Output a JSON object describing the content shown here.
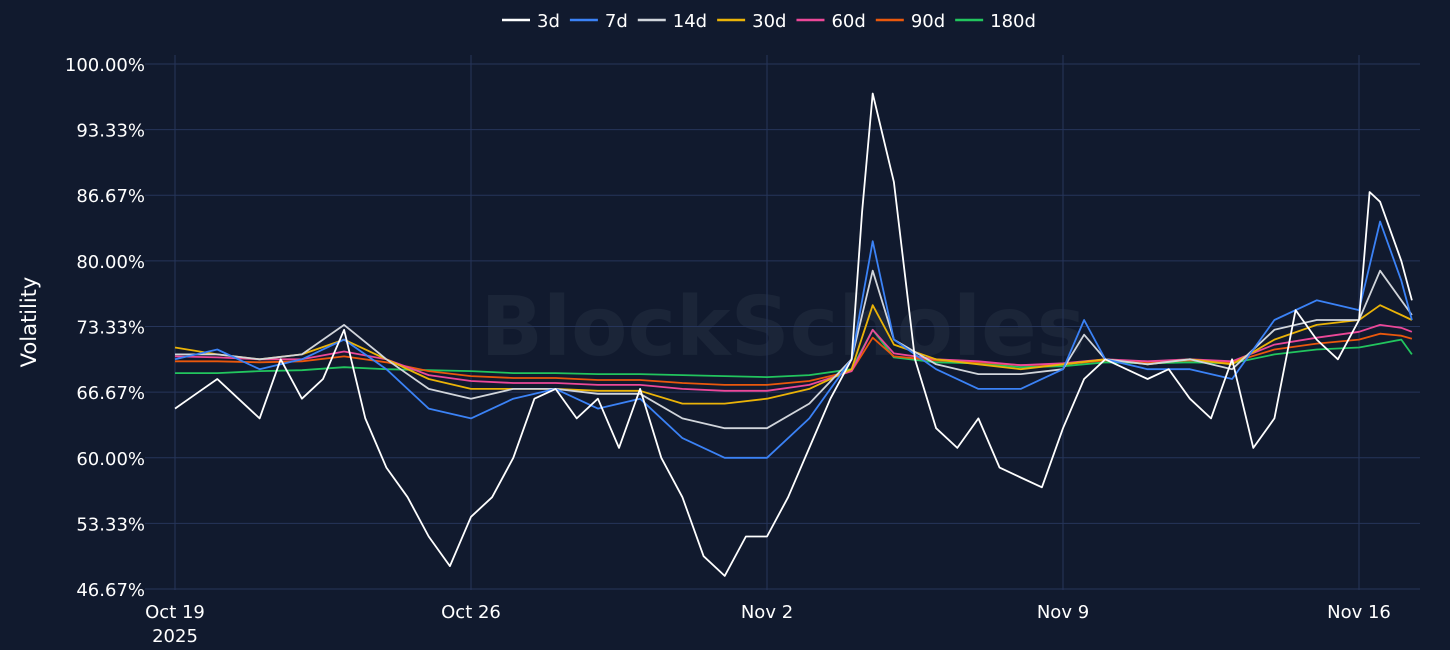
{
  "watermark": "BlockScholes",
  "chart_data": {
    "type": "line",
    "ylabel": "Volatility",
    "ylim": [
      0.4667,
      1.0
    ],
    "yticks": [
      {
        "value": 1.0,
        "label": "100.00%"
      },
      {
        "value": 0.9333,
        "label": "93.33%"
      },
      {
        "value": 0.8667,
        "label": "86.67%"
      },
      {
        "value": 0.8,
        "label": "80.00%"
      },
      {
        "value": 0.7333,
        "label": "73.33%"
      },
      {
        "value": 0.6667,
        "label": "66.67%"
      },
      {
        "value": 0.6,
        "label": "60.00%"
      },
      {
        "value": 0.5333,
        "label": "53.33%"
      },
      {
        "value": 0.4667,
        "label": "46.67%"
      }
    ],
    "xlim": [
      "2025-10-19",
      "2025-11-17 06:00"
    ],
    "xticks": [
      {
        "value": "2025-10-19",
        "label": "Oct 19",
        "sublabel": "2025"
      },
      {
        "value": "2025-10-26",
        "label": "Oct 26",
        "sublabel": ""
      },
      {
        "value": "2025-11-02",
        "label": "Nov 2",
        "sublabel": ""
      },
      {
        "value": "2025-11-09",
        "label": "Nov 9",
        "sublabel": ""
      },
      {
        "value": "2025-11-16",
        "label": "Nov 16",
        "sublabel": ""
      }
    ],
    "legend_position": "top-center",
    "series": [
      {
        "name": "3d",
        "color": "#ffffff",
        "x": [
          "2025-10-19",
          "2025-10-19 12:00",
          "2025-10-20",
          "2025-10-20 12:00",
          "2025-10-21",
          "2025-10-21 12:00",
          "2025-10-22",
          "2025-10-22 12:00",
          "2025-10-23",
          "2025-10-23 12:00",
          "2025-10-24",
          "2025-10-24 12:00",
          "2025-10-25",
          "2025-10-25 12:00",
          "2025-10-26",
          "2025-10-26 12:00",
          "2025-10-27",
          "2025-10-27 12:00",
          "2025-10-28",
          "2025-10-28 12:00",
          "2025-10-29",
          "2025-10-29 12:00",
          "2025-10-30",
          "2025-10-30 12:00",
          "2025-10-31",
          "2025-10-31 12:00",
          "2025-11-01",
          "2025-11-01 12:00",
          "2025-11-02",
          "2025-11-02 12:00",
          "2025-11-03",
          "2025-11-03 12:00",
          "2025-11-04",
          "2025-11-04 06:00",
          "2025-11-04 12:00",
          "2025-11-05",
          "2025-11-05 12:00",
          "2025-11-06",
          "2025-11-06 12:00",
          "2025-11-07",
          "2025-11-07 12:00",
          "2025-11-08",
          "2025-11-08 12:00",
          "2025-11-09",
          "2025-11-09 12:00",
          "2025-11-10",
          "2025-11-10 12:00",
          "2025-11-11",
          "2025-11-11 12:00",
          "2025-11-12",
          "2025-11-12 12:00",
          "2025-11-13",
          "2025-11-13 12:00",
          "2025-11-14",
          "2025-11-14 12:00",
          "2025-11-15",
          "2025-11-15 12:00",
          "2025-11-16",
          "2025-11-16 06:00",
          "2025-11-16 12:00",
          "2025-11-17",
          "2025-11-17 06:00"
        ],
        "values": [
          0.65,
          0.665,
          0.68,
          0.66,
          0.64,
          0.7,
          0.66,
          0.68,
          0.73,
          0.64,
          0.59,
          0.56,
          0.52,
          0.49,
          0.54,
          0.56,
          0.6,
          0.66,
          0.67,
          0.64,
          0.66,
          0.61,
          0.67,
          0.6,
          0.56,
          0.5,
          0.48,
          0.52,
          0.52,
          0.56,
          0.61,
          0.66,
          0.7,
          0.85,
          0.97,
          0.88,
          0.7,
          0.63,
          0.61,
          0.64,
          0.59,
          0.58,
          0.57,
          0.63,
          0.68,
          0.7,
          0.69,
          0.68,
          0.69,
          0.66,
          0.64,
          0.7,
          0.61,
          0.64,
          0.75,
          0.72,
          0.7,
          0.74,
          0.87,
          0.86,
          0.8,
          0.76
        ]
      },
      {
        "name": "7d",
        "color": "#3b82f6",
        "x": [
          "2025-10-19",
          "2025-10-20",
          "2025-10-21",
          "2025-10-22",
          "2025-10-23",
          "2025-10-24",
          "2025-10-25",
          "2025-10-26",
          "2025-10-27",
          "2025-10-28",
          "2025-10-29",
          "2025-10-30",
          "2025-10-31",
          "2025-11-01",
          "2025-11-02",
          "2025-11-03",
          "2025-11-04",
          "2025-11-04 12:00",
          "2025-11-05",
          "2025-11-06",
          "2025-11-07",
          "2025-11-08",
          "2025-11-09",
          "2025-11-09 12:00",
          "2025-11-10",
          "2025-11-11",
          "2025-11-12",
          "2025-11-13",
          "2025-11-14",
          "2025-11-15",
          "2025-11-16",
          "2025-11-16 12:00",
          "2025-11-17",
          "2025-11-17 06:00"
        ],
        "values": [
          0.7,
          0.71,
          0.69,
          0.7,
          0.72,
          0.69,
          0.65,
          0.64,
          0.66,
          0.67,
          0.65,
          0.66,
          0.62,
          0.6,
          0.6,
          0.64,
          0.7,
          0.82,
          0.72,
          0.69,
          0.67,
          0.67,
          0.69,
          0.74,
          0.7,
          0.69,
          0.69,
          0.68,
          0.74,
          0.76,
          0.75,
          0.84,
          0.78,
          0.74
        ]
      },
      {
        "name": "14d",
        "color": "#d1d5db",
        "x": [
          "2025-10-19",
          "2025-10-20",
          "2025-10-21",
          "2025-10-22",
          "2025-10-23",
          "2025-10-24",
          "2025-10-25",
          "2025-10-26",
          "2025-10-27",
          "2025-10-28",
          "2025-10-29",
          "2025-10-30",
          "2025-10-31",
          "2025-11-01",
          "2025-11-02",
          "2025-11-03",
          "2025-11-04",
          "2025-11-04 12:00",
          "2025-11-05",
          "2025-11-06",
          "2025-11-07",
          "2025-11-08",
          "2025-11-09",
          "2025-11-09 12:00",
          "2025-11-10",
          "2025-11-11",
          "2025-11-12",
          "2025-11-13",
          "2025-11-14",
          "2025-11-15",
          "2025-11-16",
          "2025-11-16 12:00",
          "2025-11-17",
          "2025-11-17 06:00"
        ],
        "values": [
          0.705,
          0.705,
          0.7,
          0.705,
          0.735,
          0.7,
          0.67,
          0.66,
          0.67,
          0.67,
          0.665,
          0.665,
          0.64,
          0.63,
          0.63,
          0.655,
          0.7,
          0.79,
          0.72,
          0.695,
          0.685,
          0.685,
          0.69,
          0.725,
          0.7,
          0.695,
          0.7,
          0.69,
          0.73,
          0.74,
          0.74,
          0.79,
          0.76,
          0.745
        ]
      },
      {
        "name": "30d",
        "color": "#eab308",
        "x": [
          "2025-10-19",
          "2025-10-20",
          "2025-10-21",
          "2025-10-22",
          "2025-10-23",
          "2025-10-24",
          "2025-10-25",
          "2025-10-26",
          "2025-10-27",
          "2025-10-28",
          "2025-10-29",
          "2025-10-30",
          "2025-10-31",
          "2025-11-01",
          "2025-11-02",
          "2025-11-03",
          "2025-11-04",
          "2025-11-04 12:00",
          "2025-11-05",
          "2025-11-06",
          "2025-11-07",
          "2025-11-08",
          "2025-11-09",
          "2025-11-10",
          "2025-11-11",
          "2025-11-12",
          "2025-11-13",
          "2025-11-14",
          "2025-11-15",
          "2025-11-16",
          "2025-11-16 12:00",
          "2025-11-17",
          "2025-11-17 06:00"
        ],
        "values": [
          0.712,
          0.705,
          0.7,
          0.705,
          0.72,
          0.7,
          0.68,
          0.67,
          0.67,
          0.67,
          0.668,
          0.668,
          0.655,
          0.655,
          0.66,
          0.67,
          0.69,
          0.755,
          0.715,
          0.7,
          0.695,
          0.69,
          0.695,
          0.7,
          0.695,
          0.7,
          0.695,
          0.72,
          0.735,
          0.74,
          0.755,
          0.745,
          0.74
        ]
      },
      {
        "name": "60d",
        "color": "#ec4899",
        "x": [
          "2025-10-19",
          "2025-10-20",
          "2025-10-21",
          "2025-10-22",
          "2025-10-23",
          "2025-10-24",
          "2025-10-25",
          "2025-10-26",
          "2025-10-27",
          "2025-10-28",
          "2025-10-29",
          "2025-10-30",
          "2025-10-31",
          "2025-11-01",
          "2025-11-02",
          "2025-11-03",
          "2025-11-04",
          "2025-11-04 12:00",
          "2025-11-05",
          "2025-11-06",
          "2025-11-07",
          "2025-11-08",
          "2025-11-09",
          "2025-11-10",
          "2025-11-11",
          "2025-11-12",
          "2025-11-13",
          "2025-11-14",
          "2025-11-15",
          "2025-11-16",
          "2025-11-16 12:00",
          "2025-11-17",
          "2025-11-17 06:00"
        ],
        "values": [
          0.703,
          0.702,
          0.7,
          0.7,
          0.708,
          0.7,
          0.684,
          0.678,
          0.676,
          0.676,
          0.674,
          0.674,
          0.67,
          0.668,
          0.668,
          0.674,
          0.688,
          0.73,
          0.706,
          0.7,
          0.698,
          0.694,
          0.696,
          0.7,
          0.698,
          0.7,
          0.698,
          0.715,
          0.722,
          0.728,
          0.735,
          0.732,
          0.728
        ]
      },
      {
        "name": "90d",
        "color": "#ea580c",
        "x": [
          "2025-10-19",
          "2025-10-20",
          "2025-10-21",
          "2025-10-22",
          "2025-10-23",
          "2025-10-24",
          "2025-10-25",
          "2025-10-26",
          "2025-10-27",
          "2025-10-28",
          "2025-10-29",
          "2025-10-30",
          "2025-10-31",
          "2025-11-01",
          "2025-11-02",
          "2025-11-03",
          "2025-11-04",
          "2025-11-04 12:00",
          "2025-11-05",
          "2025-11-06",
          "2025-11-07",
          "2025-11-08",
          "2025-11-09",
          "2025-11-10",
          "2025-11-11",
          "2025-11-12",
          "2025-11-13",
          "2025-11-14",
          "2025-11-15",
          "2025-11-16",
          "2025-11-16 12:00",
          "2025-11-17",
          "2025-11-17 06:00"
        ],
        "values": [
          0.698,
          0.698,
          0.697,
          0.698,
          0.703,
          0.697,
          0.688,
          0.683,
          0.681,
          0.681,
          0.679,
          0.679,
          0.676,
          0.674,
          0.674,
          0.678,
          0.688,
          0.722,
          0.703,
          0.699,
          0.697,
          0.694,
          0.695,
          0.699,
          0.697,
          0.699,
          0.697,
          0.71,
          0.716,
          0.72,
          0.726,
          0.724,
          0.721
        ]
      },
      {
        "name": "180d",
        "color": "#22c55e",
        "x": [
          "2025-10-19",
          "2025-10-20",
          "2025-10-21",
          "2025-10-22",
          "2025-10-23",
          "2025-10-24",
          "2025-10-25",
          "2025-10-26",
          "2025-10-27",
          "2025-10-28",
          "2025-10-29",
          "2025-10-30",
          "2025-10-31",
          "2025-11-01",
          "2025-11-02",
          "2025-11-03",
          "2025-11-04",
          "2025-11-04 12:00",
          "2025-11-05",
          "2025-11-06",
          "2025-11-07",
          "2025-11-08",
          "2025-11-09",
          "2025-11-10",
          "2025-11-11",
          "2025-11-12",
          "2025-11-13",
          "2025-11-14",
          "2025-11-15",
          "2025-11-16",
          "2025-11-16 12:00",
          "2025-11-17",
          "2025-11-17 06:00"
        ],
        "values": [
          0.686,
          0.686,
          0.688,
          0.689,
          0.692,
          0.69,
          0.689,
          0.688,
          0.686,
          0.686,
          0.685,
          0.685,
          0.684,
          0.683,
          0.682,
          0.684,
          0.69,
          0.73,
          0.702,
          0.697,
          0.696,
          0.692,
          0.693,
          0.697,
          0.696,
          0.697,
          0.696,
          0.705,
          0.71,
          0.712,
          0.716,
          0.72,
          0.705
        ]
      }
    ]
  }
}
